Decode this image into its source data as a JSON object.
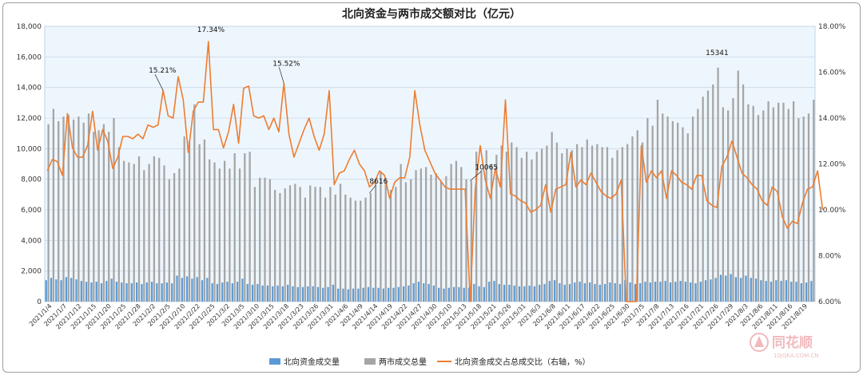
{
  "chart_data": {
    "type": "bar+line",
    "title": "北向资金与两市成交额对比（亿元）",
    "left_axis": {
      "min": 0,
      "max": 18000,
      "step": 2000,
      "tick_labels": [
        "0",
        "2,000",
        "4,000",
        "6,000",
        "8,000",
        "10,000",
        "12,000",
        "14,000",
        "16,000",
        "18,000"
      ]
    },
    "right_axis": {
      "min": 6,
      "max": 18,
      "step": 2,
      "tick_labels": [
        "6.00%",
        "8.00%",
        "10.00%",
        "12.00%",
        "14.00%",
        "16.00%",
        "18.00%"
      ]
    },
    "x_tick_labels": [
      "2021/1/4",
      "2021/1/7",
      "2021/1/12",
      "2021/1/15",
      "2021/1/20",
      "2021/1/25",
      "2021/1/28",
      "2021/2/2",
      "2021/2/5",
      "2021/2/10",
      "2021/2/22",
      "2021/2/25",
      "2021/3/2",
      "2021/3/5",
      "2021/3/10",
      "2021/3/15",
      "2021/3/18",
      "2021/3/23",
      "2021/3/26",
      "2021/3/31",
      "2021/4/6",
      "2021/4/9",
      "2021/4/14",
      "2021/4/19",
      "2021/4/22",
      "2021/4/27",
      "2021/4/30",
      "2021/5/10",
      "2021/5/13",
      "2021/5/18",
      "2021/5/21",
      "2021/5/26",
      "2021/5/31",
      "2021/6/3",
      "2021/6/8",
      "2021/6/11",
      "2021/6/17",
      "2021/6/22",
      "2021/6/25",
      "2021/6/30",
      "2021/7/5",
      "2021/7/8",
      "2021/7/13",
      "2021/7/16",
      "2021/7/21",
      "2021/7/26",
      "2021/7/29",
      "2021/8/3",
      "2021/8/6",
      "2021/8/11",
      "2021/8/16",
      "2021/8/19"
    ],
    "series": [
      {
        "name": "北向资金成交量",
        "type": "bar",
        "axis": "left",
        "color": "#5b9bd5",
        "values": [
          1400,
          1550,
          1450,
          1400,
          1600,
          1550,
          1450,
          1350,
          1300,
          1250,
          1300,
          1200,
          1350,
          1500,
          1300,
          1250,
          1200,
          1200,
          1250,
          1150,
          1250,
          1300,
          1200,
          1200,
          1250,
          1200,
          1700,
          1550,
          1650,
          1500,
          1600,
          1400,
          1550,
          1200,
          1150,
          1250,
          1300,
          1200,
          1300,
          1500,
          1150,
          1100,
          1150,
          1050,
          1050,
          1000,
          1050,
          1000,
          1100,
          1000,
          950,
          950,
          1000,
          1000,
          950,
          900,
          950,
          1100,
          850,
          850,
          800,
          850,
          850,
          900,
          950,
          900,
          900,
          850,
          900,
          900,
          950,
          1000,
          1050,
          1200,
          1300,
          1200,
          1150,
          1050,
          900,
          850,
          900,
          950,
          950,
          900,
          900,
          1150,
          1000,
          950,
          1300,
          1350,
          1150,
          1100,
          1100,
          1050,
          1000,
          1000,
          1050,
          1000,
          1100,
          1150,
          1350,
          1400,
          1200,
          1100,
          1150,
          1250,
          1300,
          1200,
          1250,
          1150,
          1100,
          1150,
          1250,
          1200,
          1150,
          1400,
          1250,
          1150,
          1200,
          1300,
          1250,
          1300,
          1300,
          1350,
          1250,
          1300,
          1350,
          1300,
          1250,
          1200,
          1300,
          1400,
          1450,
          1550,
          1750,
          1700,
          1800,
          1600,
          1550,
          1700,
          1550,
          1500,
          1400,
          1350,
          1300,
          1400,
          1350,
          1400,
          1300,
          1300,
          1200,
          1250,
          1350,
          1300,
          1350,
          1350,
          1300
        ]
      },
      {
        "name": "两市成交总量",
        "type": "bar",
        "axis": "left",
        "color": "#a5a5a5",
        "values": [
          11600,
          12600,
          11800,
          12100,
          12200,
          11900,
          12100,
          11700,
          12300,
          11100,
          11200,
          11600,
          11100,
          12000,
          10100,
          9200,
          9100,
          9000,
          9500,
          8600,
          9000,
          9500,
          9400,
          8900,
          8000,
          8400,
          8700,
          10800,
          10500,
          12900,
          10300,
          10600,
          9300,
          9100,
          8700,
          9200,
          8700,
          9700,
          8700,
          9700,
          9800,
          7500,
          8100,
          8100,
          8000,
          7300,
          7100,
          7400,
          7600,
          7700,
          7500,
          6800,
          7600,
          7500,
          7500,
          6800,
          7500,
          7000,
          7700,
          7000,
          6800,
          6600,
          6600,
          6800,
          7100,
          7900,
          8500,
          7800,
          7300,
          7500,
          9000,
          7800,
          8000,
          8600,
          8700,
          8800,
          8300,
          8400,
          7900,
          8200,
          9000,
          9200,
          8800,
          8000,
          7900,
          9800,
          8600,
          9900,
          9000,
          9600,
          10200,
          9800,
          10400,
          10100,
          9400,
          9800,
          9300,
          9800,
          10000,
          10200,
          11100,
          10400,
          9700,
          10000,
          9900,
          10300,
          10100,
          10600,
          10200,
          10300,
          10100,
          10100,
          9400,
          9900,
          10100,
          10300,
          10800,
          11200,
          10400,
          12000,
          11500,
          13200,
          12300,
          12100,
          11800,
          11700,
          11400,
          11000,
          12100,
          12600,
          13400,
          13800,
          14200,
          15300,
          12700,
          12500,
          13300,
          15100,
          14200,
          12900,
          12800,
          12200,
          12500,
          13100,
          12700,
          13000,
          13000,
          12600,
          13100,
          12000,
          12100,
          12300,
          13200
        ]
      },
      {
        "name": "北向资金成交占总成交比（右轴，%）",
        "type": "line",
        "axis": "right",
        "color": "#ed7d31",
        "values": [
          11.7,
          12.2,
          12.1,
          11.5,
          14.2,
          12.7,
          12.3,
          12.3,
          12.8,
          14.3,
          12.6,
          13.5,
          13.0,
          11.8,
          12.3,
          13.2,
          13.2,
          13.1,
          13.3,
          13.1,
          13.7,
          13.6,
          13.7,
          15.21,
          14.1,
          14.0,
          15.8,
          14.8,
          12.5,
          14.3,
          14.7,
          14.7,
          17.34,
          13.5,
          13.5,
          12.7,
          13.4,
          14.6,
          12.9,
          15.3,
          15.4,
          14.1,
          14.0,
          14.1,
          13.5,
          14.0,
          13.4,
          15.52,
          13.3,
          12.3,
          12.9,
          13.5,
          14.0,
          13.2,
          12.6,
          13.3,
          15.2,
          11.1,
          11.6,
          11.7,
          12.2,
          12.6,
          12.0,
          11.7,
          11.0,
          11.2,
          11.7,
          11.5,
          10.5,
          11.2,
          11.4,
          11.4,
          12.3,
          15.2,
          13.7,
          12.6,
          12.1,
          11.6,
          11.3,
          11.0,
          10.9,
          10.9,
          10.9,
          10.9,
          6.0,
          10.9,
          12.8,
          11.3,
          10.5,
          11.8,
          11.0,
          14.8,
          10.7,
          10.6,
          10.4,
          10.3,
          9.9,
          10.0,
          10.2,
          11.1,
          9.9,
          10.9,
          11.0,
          11.1,
          12.5,
          11.0,
          11.3,
          11.1,
          11.6,
          11.2,
          10.8,
          10.6,
          10.5,
          10.7,
          11.3,
          6.0,
          6.0,
          6.0,
          12.8,
          11.2,
          11.7,
          11.4,
          11.7,
          10.5,
          11.7,
          11.5,
          11.2,
          11.1,
          10.9,
          11.5,
          11.5,
          10.4,
          10.2,
          10.1,
          11.9,
          12.3,
          13.0,
          12.3,
          11.6,
          11.4,
          11.1,
          10.9,
          10.4,
          10.2,
          11.0,
          10.8,
          9.7,
          9.2,
          9.5,
          9.4,
          10.3,
          10.9,
          11.0,
          11.7,
          10.0
        ]
      }
    ],
    "annotations": [
      "15.21%",
      "17.34%",
      "15.52%",
      "8616",
      "10065",
      "15341"
    ],
    "legend_position": "bottom",
    "grid": true
  },
  "watermark": {
    "brand": "同花顺",
    "url": "10JQKA.COM.CN"
  }
}
